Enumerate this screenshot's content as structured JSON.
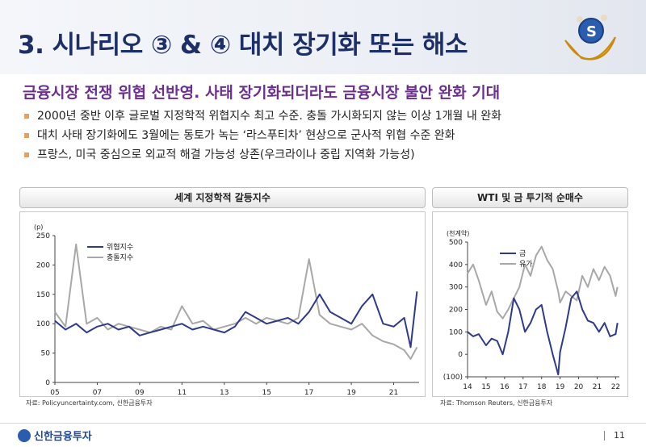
{
  "page": {
    "title": "3. 시나리오 ③ & ④ 대치 장기화 또는 해소",
    "headline": "금융시장 전쟁 위협 선반영. 사태 장기화되더라도 금융시장 불안 완화 기대",
    "bullets": [
      "2000년 중반 이후 글로벌 지정학적 위협지수 최고 수준. 충돌 가시화되지 않는 이상 1개월 내 완화",
      "대치 사태 장기화에도 3월에는 동토가 녹는 ‘라스푸티차’ 현상으로 군사적 위협 수준 완화",
      "프랑스, 미국 중심으로 외교적 해결 가능성 상존(우크라이나 중립 지역화 가능성)"
    ],
    "footer": {
      "company": "신한금융투자",
      "page_number": "11"
    }
  },
  "chart_data": [
    {
      "type": "line",
      "title": "세계 지정학적 갈등지수",
      "unit_label": "(p)",
      "x_ticks": [
        "05",
        "07",
        "09",
        "11",
        "13",
        "15",
        "17",
        "19",
        "21"
      ],
      "x_range": [
        2005,
        2022.2
      ],
      "ylim": [
        0,
        250
      ],
      "y_ticks": [
        0,
        50,
        100,
        150,
        200,
        250
      ],
      "legend_position": "top-left",
      "source": "자료: Policyuncertainty.com, 신한금융투자",
      "series": [
        {
          "name": "위협지수",
          "color": "#2e3a8c",
          "x": [
            2005.0,
            2005.5,
            2006.0,
            2006.5,
            2007.0,
            2007.5,
            2008.0,
            2008.5,
            2009.0,
            2009.5,
            2010.0,
            2010.5,
            2011.0,
            2011.5,
            2012.0,
            2012.5,
            2013.0,
            2013.5,
            2014.0,
            2014.5,
            2015.0,
            2015.5,
            2016.0,
            2016.5,
            2017.0,
            2017.5,
            2018.0,
            2018.5,
            2019.0,
            2019.5,
            2020.0,
            2020.5,
            2021.0,
            2021.5,
            2021.8,
            2022.1
          ],
          "y": [
            105,
            90,
            100,
            85,
            95,
            100,
            90,
            95,
            80,
            85,
            90,
            95,
            100,
            90,
            95,
            90,
            85,
            95,
            120,
            110,
            100,
            105,
            110,
            100,
            120,
            150,
            120,
            110,
            100,
            130,
            150,
            100,
            95,
            110,
            60,
            155
          ]
        },
        {
          "name": "충돌지수",
          "color": "#a8a8a8",
          "x": [
            2005.0,
            2005.5,
            2006.0,
            2006.5,
            2007.0,
            2007.5,
            2008.0,
            2008.5,
            2009.0,
            2009.5,
            2010.0,
            2010.5,
            2011.0,
            2011.5,
            2012.0,
            2012.5,
            2013.0,
            2013.5,
            2014.0,
            2014.5,
            2015.0,
            2015.5,
            2016.0,
            2016.5,
            2017.0,
            2017.5,
            2018.0,
            2018.5,
            2019.0,
            2019.5,
            2020.0,
            2020.5,
            2021.0,
            2021.5,
            2021.8,
            2022.1
          ],
          "y": [
            120,
            95,
            235,
            100,
            110,
            90,
            100,
            95,
            90,
            85,
            95,
            90,
            130,
            100,
            105,
            90,
            95,
            100,
            110,
            100,
            110,
            105,
            100,
            110,
            210,
            115,
            100,
            95,
            90,
            100,
            80,
            70,
            65,
            55,
            40,
            60
          ]
        }
      ]
    },
    {
      "type": "line",
      "title": "WTI 및 금 투기적 순매수",
      "unit_label": "(천계약)",
      "x_ticks": [
        "14",
        "15",
        "16",
        "17",
        "18",
        "19",
        "20",
        "21",
        "22"
      ],
      "x_range": [
        2014,
        2022.2
      ],
      "ylim": [
        -100,
        500
      ],
      "y_ticks": [
        "(100)",
        "0",
        "100",
        "200",
        "300",
        "400",
        "500"
      ],
      "legend_position": "top-left",
      "source": "자료: Thomson Reuters, 신한금융투자",
      "series": [
        {
          "name": "금",
          "color": "#2e3a8c",
          "x": [
            2014.0,
            2014.3,
            2014.6,
            2015.0,
            2015.3,
            2015.6,
            2015.9,
            2016.2,
            2016.5,
            2016.8,
            2017.1,
            2017.4,
            2017.7,
            2018.0,
            2018.3,
            2018.6,
            2018.9,
            2019.0,
            2019.3,
            2019.6,
            2019.9,
            2020.2,
            2020.5,
            2020.8,
            2021.1,
            2021.4,
            2021.7,
            2022.0,
            2022.1
          ],
          "y": [
            100,
            80,
            90,
            40,
            70,
            60,
            0,
            100,
            250,
            200,
            100,
            140,
            200,
            220,
            100,
            0,
            -90,
            10,
            120,
            250,
            280,
            200,
            150,
            140,
            100,
            140,
            80,
            90,
            140
          ]
        },
        {
          "name": "유가",
          "color": "#a8a8a8",
          "x": [
            2014.0,
            2014.3,
            2014.6,
            2015.0,
            2015.3,
            2015.6,
            2015.9,
            2016.2,
            2016.5,
            2016.8,
            2017.1,
            2017.4,
            2017.7,
            2018.0,
            2018.3,
            2018.6,
            2018.9,
            2019.0,
            2019.3,
            2019.6,
            2019.9,
            2020.2,
            2020.5,
            2020.8,
            2021.1,
            2021.4,
            2021.7,
            2022.0,
            2022.1
          ],
          "y": [
            360,
            400,
            330,
            220,
            280,
            190,
            160,
            200,
            250,
            300,
            400,
            350,
            440,
            480,
            420,
            380,
            280,
            230,
            280,
            260,
            240,
            350,
            300,
            380,
            330,
            390,
            350,
            260,
            300
          ]
        }
      ]
    }
  ]
}
